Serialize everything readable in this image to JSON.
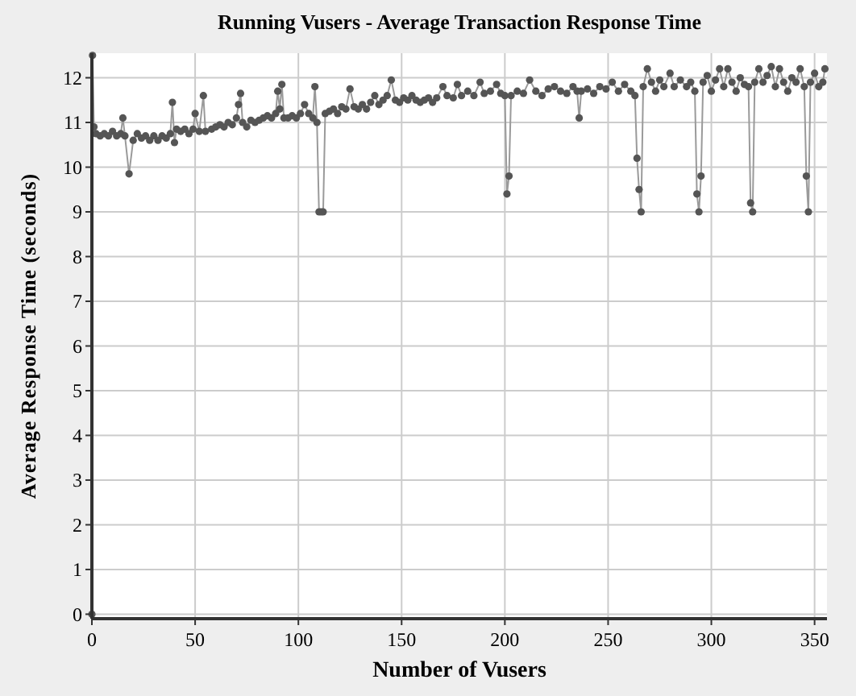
{
  "chart_data": {
    "type": "line",
    "title": "Running Vusers - Average Transaction Response Time",
    "xlabel": "Number of Vusers",
    "ylabel": "Average Response Time (seconds)",
    "xlim": [
      0,
      356
    ],
    "xticks": [
      0,
      50,
      100,
      150,
      200,
      250,
      300,
      350
    ],
    "ylim": [
      -0.1,
      12.55
    ],
    "yticks": [
      0,
      1,
      2,
      3,
      4,
      5,
      6,
      7,
      8,
      9,
      10,
      11,
      12
    ],
    "grid": true,
    "marker": "circle",
    "line_style": "solid",
    "series": [
      {
        "color": "#555555",
        "x": [
          0,
          0.3,
          1,
          2,
          4,
          6,
          8,
          10,
          12,
          14,
          15,
          16,
          18,
          20,
          22,
          24,
          26,
          28,
          30,
          32,
          34,
          36,
          38,
          39,
          40,
          41,
          43,
          45,
          47,
          49,
          50,
          52,
          54,
          55,
          58,
          60,
          62,
          64,
          66,
          68,
          70,
          71,
          72,
          73,
          75,
          77,
          79,
          81,
          83,
          85,
          87,
          89,
          90,
          91,
          92,
          93,
          95,
          97,
          99,
          101,
          103,
          105,
          107,
          108,
          109,
          110,
          111,
          112,
          113,
          115,
          117,
          119,
          121,
          123,
          125,
          127,
          129,
          131,
          133,
          135,
          137,
          139,
          141,
          143,
          145,
          147,
          149,
          151,
          153,
          155,
          157,
          159,
          161,
          163,
          165,
          167,
          170,
          172,
          175,
          177,
          179,
          182,
          185,
          188,
          190,
          193,
          196,
          198,
          200,
          201,
          202,
          203,
          206,
          209,
          212,
          215,
          218,
          221,
          224,
          227,
          230,
          233,
          235,
          236,
          237,
          240,
          243,
          246,
          249,
          252,
          255,
          258,
          261,
          263,
          264,
          265,
          266,
          267,
          269,
          271,
          273,
          275,
          277,
          280,
          282,
          285,
          288,
          290,
          292,
          293,
          294,
          295,
          296,
          298,
          300,
          302,
          304,
          306,
          308,
          310,
          312,
          314,
          316,
          318,
          319,
          320,
          321,
          323,
          325,
          327,
          329,
          331,
          333,
          335,
          337,
          339,
          341,
          343,
          345,
          346,
          347,
          348,
          350,
          352,
          354,
          355
        ],
        "values": [
          0,
          12.5,
          10.9,
          10.75,
          10.7,
          10.75,
          10.7,
          10.8,
          10.7,
          10.75,
          11.1,
          10.7,
          9.85,
          10.6,
          10.75,
          10.65,
          10.7,
          10.6,
          10.7,
          10.6,
          10.7,
          10.65,
          10.75,
          11.45,
          10.55,
          10.85,
          10.8,
          10.85,
          10.75,
          10.85,
          11.2,
          10.8,
          11.6,
          10.8,
          10.85,
          10.9,
          10.95,
          10.9,
          11.0,
          10.95,
          11.1,
          11.4,
          11.65,
          11.0,
          10.9,
          11.05,
          11.0,
          11.05,
          11.1,
          11.15,
          11.1,
          11.2,
          11.7,
          11.3,
          11.85,
          11.1,
          11.1,
          11.15,
          11.1,
          11.2,
          11.4,
          11.2,
          11.1,
          11.8,
          11.0,
          9.0,
          9.0,
          9.0,
          11.2,
          11.25,
          11.3,
          11.2,
          11.35,
          11.3,
          11.75,
          11.35,
          11.3,
          11.4,
          11.3,
          11.45,
          11.6,
          11.4,
          11.5,
          11.6,
          11.95,
          11.5,
          11.45,
          11.55,
          11.5,
          11.6,
          11.5,
          11.45,
          11.5,
          11.55,
          11.45,
          11.55,
          11.8,
          11.6,
          11.55,
          11.85,
          11.6,
          11.7,
          11.6,
          11.9,
          11.65,
          11.7,
          11.85,
          11.65,
          11.6,
          9.4,
          9.8,
          11.6,
          11.7,
          11.65,
          11.95,
          11.7,
          11.6,
          11.75,
          11.8,
          11.7,
          11.65,
          11.8,
          11.7,
          11.1,
          11.7,
          11.75,
          11.65,
          11.8,
          11.75,
          11.9,
          11.7,
          11.85,
          11.7,
          11.6,
          10.2,
          9.5,
          9.0,
          11.8,
          12.2,
          11.9,
          11.7,
          11.95,
          11.8,
          12.1,
          11.8,
          11.95,
          11.8,
          11.9,
          11.7,
          9.4,
          9.0,
          9.8,
          11.9,
          12.05,
          11.7,
          11.95,
          12.2,
          11.8,
          12.2,
          11.9,
          11.7,
          12.0,
          11.85,
          11.8,
          9.2,
          9.0,
          11.9,
          12.2,
          11.9,
          12.05,
          12.25,
          11.8,
          12.2,
          11.9,
          11.7,
          12.0,
          11.9,
          12.2,
          11.8,
          9.8,
          9.0,
          11.9,
          12.1,
          11.8,
          11.9,
          12.2
        ]
      }
    ]
  }
}
